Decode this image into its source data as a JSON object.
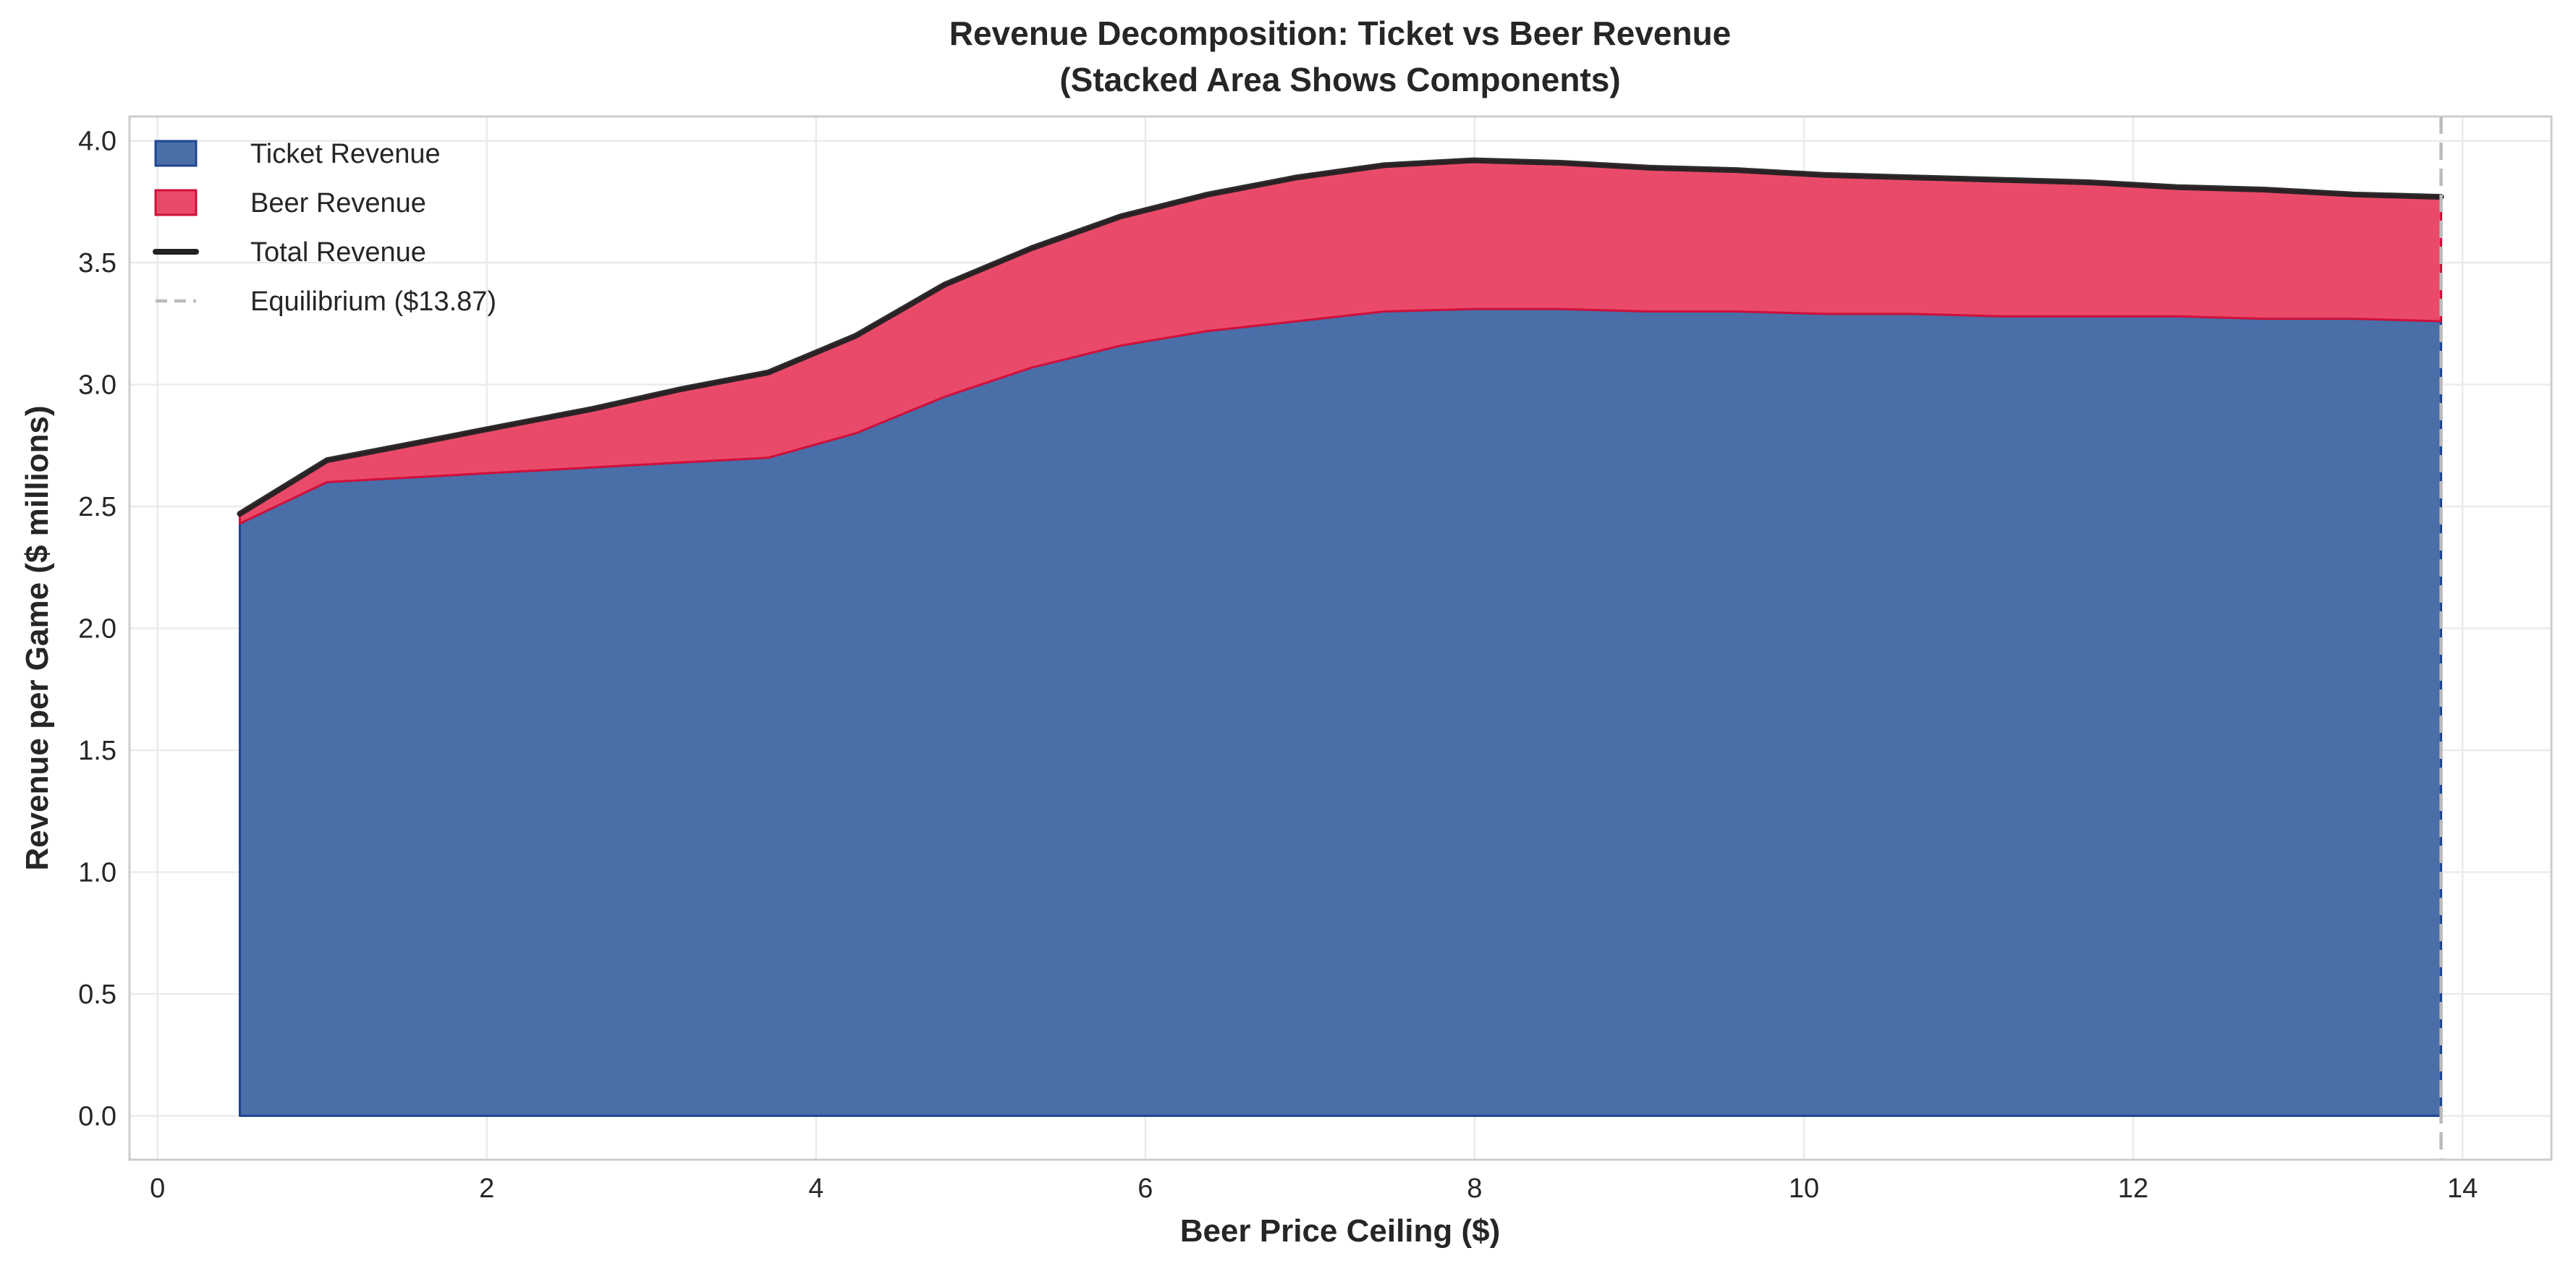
{
  "chart_data": {
    "type": "area",
    "stacked": true,
    "title": "Revenue Decomposition: Ticket vs Beer Revenue",
    "subtitle": "(Stacked Area Shows Components)",
    "xlabel": "Beer Price Ceiling ($)",
    "ylabel": "Revenue per Game ($ millions)",
    "xlim": [
      -0.17,
      14.54
    ],
    "ylim": [
      -0.18,
      4.1
    ],
    "xticks": [
      "0",
      "2",
      "4",
      "6",
      "8",
      "10",
      "12",
      "14"
    ],
    "yticks": [
      "0.0",
      "0.5",
      "1.0",
      "1.5",
      "2.0",
      "2.5",
      "3.0",
      "3.5",
      "4.0"
    ],
    "grid": true,
    "legend_position": "top-left",
    "x": [
      0.5,
      1.03,
      1.57,
      2.1,
      2.64,
      3.17,
      3.71,
      4.24,
      4.78,
      5.31,
      5.85,
      6.38,
      6.92,
      7.45,
      7.99,
      8.52,
      9.06,
      9.59,
      10.13,
      10.66,
      11.2,
      11.73,
      12.27,
      12.8,
      13.34,
      13.87
    ],
    "series": [
      {
        "name": "Ticket Revenue",
        "kind": "area",
        "color": "#4a6ea8",
        "edge_color": "#1f4690",
        "values": [
          2.43,
          2.6,
          2.62,
          2.64,
          2.66,
          2.68,
          2.7,
          2.8,
          2.95,
          3.07,
          3.16,
          3.22,
          3.26,
          3.3,
          3.31,
          3.31,
          3.3,
          3.3,
          3.29,
          3.29,
          3.28,
          3.28,
          3.28,
          3.27,
          3.27,
          3.26
        ]
      },
      {
        "name": "Beer Revenue",
        "kind": "area",
        "color": "#ea4a6a",
        "edge_color": "#d0103a",
        "values": [
          0.04,
          0.09,
          0.14,
          0.19,
          0.24,
          0.3,
          0.35,
          0.4,
          0.46,
          0.49,
          0.53,
          0.56,
          0.59,
          0.6,
          0.61,
          0.6,
          0.59,
          0.58,
          0.57,
          0.56,
          0.56,
          0.55,
          0.53,
          0.53,
          0.51,
          0.51
        ]
      },
      {
        "name": "Total Revenue",
        "kind": "line",
        "color": "#222222",
        "values": [
          2.47,
          2.69,
          2.76,
          2.83,
          2.9,
          2.98,
          3.05,
          3.2,
          3.41,
          3.56,
          3.69,
          3.78,
          3.85,
          3.9,
          3.92,
          3.91,
          3.89,
          3.88,
          3.86,
          3.85,
          3.84,
          3.83,
          3.81,
          3.8,
          3.78,
          3.77
        ]
      }
    ],
    "reference_lines": [
      {
        "name": "Equilibrium ($13.87)",
        "orientation": "vertical",
        "x": 13.87,
        "color": "#bbbbbb",
        "style": "dashed"
      }
    ]
  }
}
